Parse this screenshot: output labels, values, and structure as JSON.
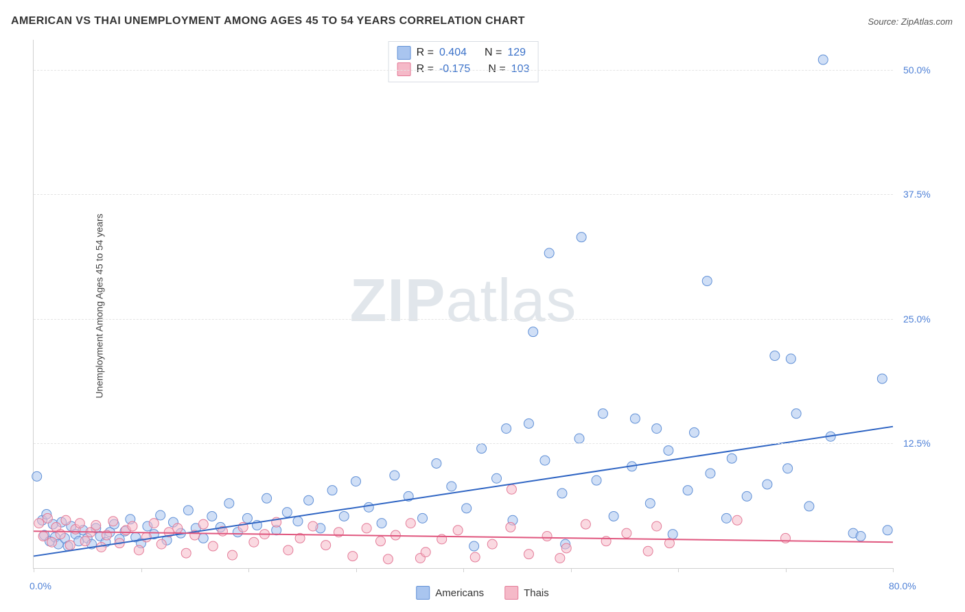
{
  "title": "AMERICAN VS THAI UNEMPLOYMENT AMONG AGES 45 TO 54 YEARS CORRELATION CHART",
  "source_label": "Source: ZipAtlas.com",
  "y_axis_label": "Unemployment Among Ages 45 to 54 years",
  "watermark": {
    "bold": "ZIP",
    "light": "atlas"
  },
  "chart": {
    "type": "scatter",
    "xlim": [
      0,
      80
    ],
    "ylim": [
      0,
      53
    ],
    "x_ticks": [
      0,
      10,
      20,
      30,
      40,
      50,
      60,
      70,
      80
    ],
    "x_tick_labels_shown": {
      "0": "0.0%",
      "80": "80.0%"
    },
    "y_ticks": [
      12.5,
      25.0,
      37.5,
      50.0
    ],
    "y_tick_labels": [
      "12.5%",
      "25.0%",
      "37.5%",
      "50.0%"
    ],
    "grid_color": "#e4e4e4",
    "background": "#ffffff",
    "marker_radius": 7,
    "marker_opacity": 0.55,
    "series": [
      {
        "name": "Americans",
        "marker_fill": "#a9c5ef",
        "marker_stroke": "#5f8fd6",
        "line_color": "#2e64c3",
        "line_width": 2,
        "regression": {
          "x1": 0,
          "y1": 1.2,
          "x2": 80,
          "y2": 14.2
        },
        "R": "0.404",
        "N": "129",
        "points": [
          [
            0.3,
            9.2
          ],
          [
            0.8,
            4.8
          ],
          [
            1.0,
            3.3
          ],
          [
            1.2,
            5.4
          ],
          [
            1.5,
            2.7
          ],
          [
            1.8,
            4.4
          ],
          [
            2.0,
            3.1
          ],
          [
            2.3,
            2.4
          ],
          [
            2.6,
            4.6
          ],
          [
            2.9,
            3.0
          ],
          [
            3.2,
            2.2
          ],
          [
            3.5,
            4.2
          ],
          [
            3.9,
            3.4
          ],
          [
            4.2,
            2.7
          ],
          [
            4.6,
            3.8
          ],
          [
            5.0,
            3.0
          ],
          [
            5.4,
            2.4
          ],
          [
            5.8,
            4.0
          ],
          [
            6.2,
            3.2
          ],
          [
            6.7,
            2.6
          ],
          [
            7.1,
            3.6
          ],
          [
            7.5,
            4.4
          ],
          [
            8.0,
            2.9
          ],
          [
            8.5,
            3.7
          ],
          [
            9.0,
            4.9
          ],
          [
            9.5,
            3.1
          ],
          [
            10.0,
            2.5
          ],
          [
            10.6,
            4.2
          ],
          [
            11.2,
            3.4
          ],
          [
            11.8,
            5.3
          ],
          [
            12.4,
            2.8
          ],
          [
            13.0,
            4.6
          ],
          [
            13.7,
            3.5
          ],
          [
            14.4,
            5.8
          ],
          [
            15.1,
            4.0
          ],
          [
            15.8,
            3.0
          ],
          [
            16.6,
            5.2
          ],
          [
            17.4,
            4.1
          ],
          [
            18.2,
            6.5
          ],
          [
            19.0,
            3.6
          ],
          [
            19.9,
            5.0
          ],
          [
            20.8,
            4.3
          ],
          [
            21.7,
            7.0
          ],
          [
            22.6,
            3.8
          ],
          [
            23.6,
            5.6
          ],
          [
            24.6,
            4.7
          ],
          [
            25.6,
            6.8
          ],
          [
            26.7,
            4.0
          ],
          [
            27.8,
            7.8
          ],
          [
            28.9,
            5.2
          ],
          [
            30.0,
            8.7
          ],
          [
            31.2,
            6.1
          ],
          [
            32.4,
            4.5
          ],
          [
            33.6,
            9.3
          ],
          [
            34.9,
            7.2
          ],
          [
            36.2,
            5.0
          ],
          [
            37.5,
            10.5
          ],
          [
            38.9,
            8.2
          ],
          [
            40.3,
            6.0
          ],
          [
            41.7,
            12.0
          ],
          [
            41.0,
            2.2
          ],
          [
            43.1,
            9.0
          ],
          [
            44.6,
            4.8
          ],
          [
            44.0,
            14.0
          ],
          [
            46.1,
            14.5
          ],
          [
            46.5,
            23.7
          ],
          [
            47.6,
            10.8
          ],
          [
            48.0,
            31.6
          ],
          [
            49.2,
            7.5
          ],
          [
            49.5,
            2.4
          ],
          [
            50.8,
            13.0
          ],
          [
            51.0,
            33.2
          ],
          [
            52.4,
            8.8
          ],
          [
            53.0,
            15.5
          ],
          [
            54.0,
            5.2
          ],
          [
            55.7,
            10.2
          ],
          [
            56.0,
            15.0
          ],
          [
            57.4,
            6.5
          ],
          [
            58.0,
            14.0
          ],
          [
            59.1,
            11.8
          ],
          [
            59.5,
            3.4
          ],
          [
            60.9,
            7.8
          ],
          [
            61.5,
            13.6
          ],
          [
            62.7,
            28.8
          ],
          [
            63.0,
            9.5
          ],
          [
            64.5,
            5.0
          ],
          [
            65.0,
            11.0
          ],
          [
            66.4,
            7.2
          ],
          [
            68.3,
            8.4
          ],
          [
            69.0,
            21.3
          ],
          [
            70.2,
            10.0
          ],
          [
            70.5,
            21.0
          ],
          [
            71.0,
            15.5
          ],
          [
            72.2,
            6.2
          ],
          [
            73.5,
            51.0
          ],
          [
            74.2,
            13.2
          ],
          [
            76.3,
            3.5
          ],
          [
            77.0,
            3.2
          ],
          [
            79.0,
            19.0
          ],
          [
            79.5,
            3.8
          ]
        ]
      },
      {
        "name": "Thais",
        "marker_fill": "#f5b9c8",
        "marker_stroke": "#e37a97",
        "line_color": "#e0567e",
        "line_width": 2,
        "regression": {
          "x1": 0,
          "y1": 3.7,
          "x2": 80,
          "y2": 2.6
        },
        "R": "-0.175",
        "N": "103",
        "points": [
          [
            0.5,
            4.5
          ],
          [
            0.9,
            3.2
          ],
          [
            1.3,
            5.0
          ],
          [
            1.7,
            2.6
          ],
          [
            2.1,
            4.1
          ],
          [
            2.5,
            3.4
          ],
          [
            3.0,
            4.8
          ],
          [
            3.4,
            2.3
          ],
          [
            3.9,
            3.9
          ],
          [
            4.3,
            4.5
          ],
          [
            4.8,
            2.7
          ],
          [
            5.3,
            3.6
          ],
          [
            5.8,
            4.3
          ],
          [
            6.3,
            2.1
          ],
          [
            6.8,
            3.3
          ],
          [
            7.4,
            4.7
          ],
          [
            8.0,
            2.5
          ],
          [
            8.6,
            3.8
          ],
          [
            9.2,
            4.2
          ],
          [
            9.8,
            1.8
          ],
          [
            10.5,
            3.1
          ],
          [
            11.2,
            4.5
          ],
          [
            11.9,
            2.4
          ],
          [
            12.6,
            3.6
          ],
          [
            13.4,
            4.0
          ],
          [
            14.2,
            1.5
          ],
          [
            15.0,
            3.3
          ],
          [
            15.8,
            4.4
          ],
          [
            16.7,
            2.2
          ],
          [
            17.6,
            3.7
          ],
          [
            18.5,
            1.3
          ],
          [
            19.5,
            4.1
          ],
          [
            20.5,
            2.6
          ],
          [
            21.5,
            3.4
          ],
          [
            22.6,
            4.6
          ],
          [
            23.7,
            1.8
          ],
          [
            24.8,
            3.0
          ],
          [
            26.0,
            4.2
          ],
          [
            27.2,
            2.3
          ],
          [
            28.4,
            3.6
          ],
          [
            29.7,
            1.2
          ],
          [
            31.0,
            4.0
          ],
          [
            32.3,
            2.7
          ],
          [
            33.0,
            0.9
          ],
          [
            33.7,
            3.3
          ],
          [
            35.1,
            4.5
          ],
          [
            36.0,
            1.0
          ],
          [
            36.5,
            1.6
          ],
          [
            38.0,
            2.9
          ],
          [
            39.5,
            3.8
          ],
          [
            41.1,
            1.1
          ],
          [
            42.7,
            2.4
          ],
          [
            44.4,
            4.1
          ],
          [
            44.5,
            7.9
          ],
          [
            46.1,
            1.4
          ],
          [
            47.8,
            3.2
          ],
          [
            49.0,
            1.0
          ],
          [
            49.6,
            2.0
          ],
          [
            51.4,
            4.4
          ],
          [
            53.3,
            2.7
          ],
          [
            55.2,
            3.5
          ],
          [
            57.2,
            1.7
          ],
          [
            58.0,
            4.2
          ],
          [
            59.2,
            2.5
          ],
          [
            65.5,
            4.8
          ],
          [
            70.0,
            3.0
          ]
        ]
      }
    ]
  },
  "legend_top_labels": {
    "R": "R =",
    "N": "N ="
  },
  "legend_bottom": [
    {
      "label": "Americans",
      "fill": "#a9c5ef",
      "stroke": "#5f8fd6"
    },
    {
      "label": "Thais",
      "fill": "#f5b9c8",
      "stroke": "#e37a97"
    }
  ]
}
